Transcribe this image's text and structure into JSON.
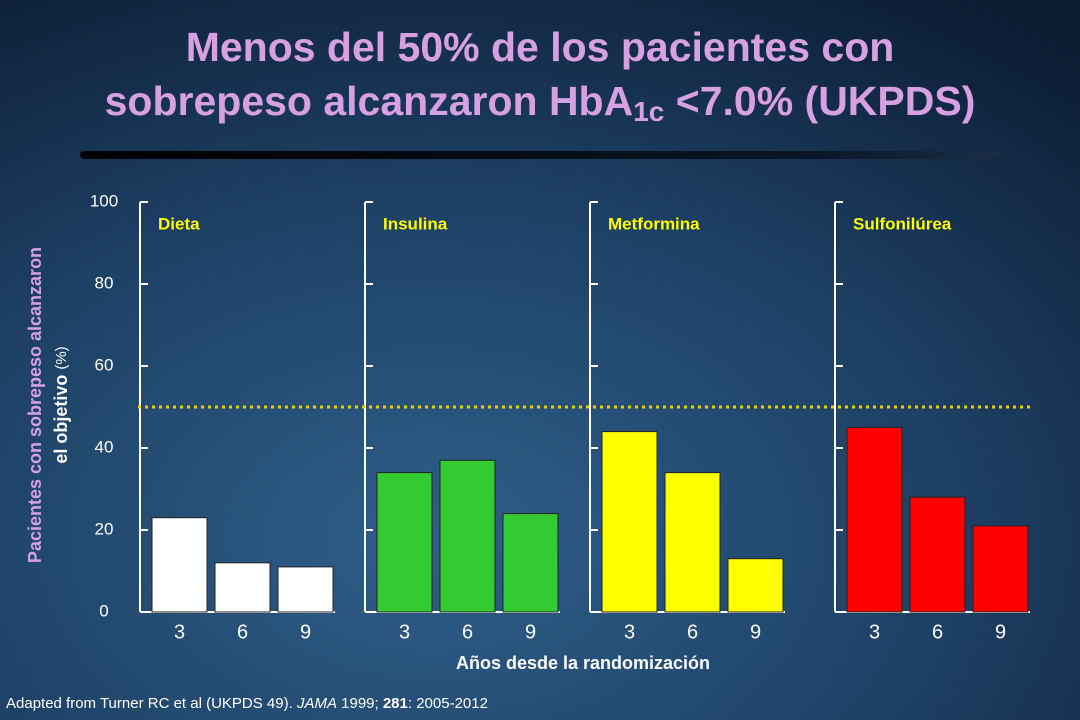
{
  "title": {
    "line1": "Menos del 50% de los pacientes con",
    "line2_before": "sobrepeso alcanzaron HbA",
    "subscript": "1c",
    "line2_after": " <7.0% (UKPDS)"
  },
  "ylabel": {
    "line1": "Pacientes con sobrepeso alcanzaron",
    "line2": "el objetivo",
    "unit": "(%)"
  },
  "xlabel": "Años desde la randomización",
  "threshold": 50,
  "source": {
    "part1": "Adapted from Turner RC et al (UKPDS 49). ",
    "journal": "JAMA",
    "part2": " 1999; ",
    "volume": "281",
    "part3": ": 2005-2012"
  },
  "chart_data": [
    {
      "type": "bar",
      "title": "Dieta",
      "categories": [
        "3",
        "6",
        "9"
      ],
      "values": [
        23,
        12,
        11
      ],
      "color": "#ffffff",
      "ylim": [
        0,
        100
      ],
      "yticks": [
        0,
        20,
        40,
        60,
        80,
        100
      ]
    },
    {
      "type": "bar",
      "title": "Insulina",
      "categories": [
        "3",
        "6",
        "9"
      ],
      "values": [
        34,
        37,
        24
      ],
      "color": "#33cc33",
      "ylim": [
        0,
        100
      ],
      "yticks": [
        0,
        20,
        40,
        60,
        80,
        100
      ]
    },
    {
      "type": "bar",
      "title": "Metformina",
      "categories": [
        "3",
        "6",
        "9"
      ],
      "values": [
        44,
        34,
        13
      ],
      "color": "#ffff00",
      "ylim": [
        0,
        100
      ],
      "yticks": [
        0,
        20,
        40,
        60,
        80,
        100
      ]
    },
    {
      "type": "bar",
      "title": "Sulfonilúrea",
      "categories": [
        "3",
        "6",
        "9"
      ],
      "values": [
        45,
        28,
        21
      ],
      "color": "#ff0000",
      "ylim": [
        0,
        100
      ],
      "yticks": [
        0,
        20,
        40,
        60,
        80,
        100
      ]
    }
  ]
}
